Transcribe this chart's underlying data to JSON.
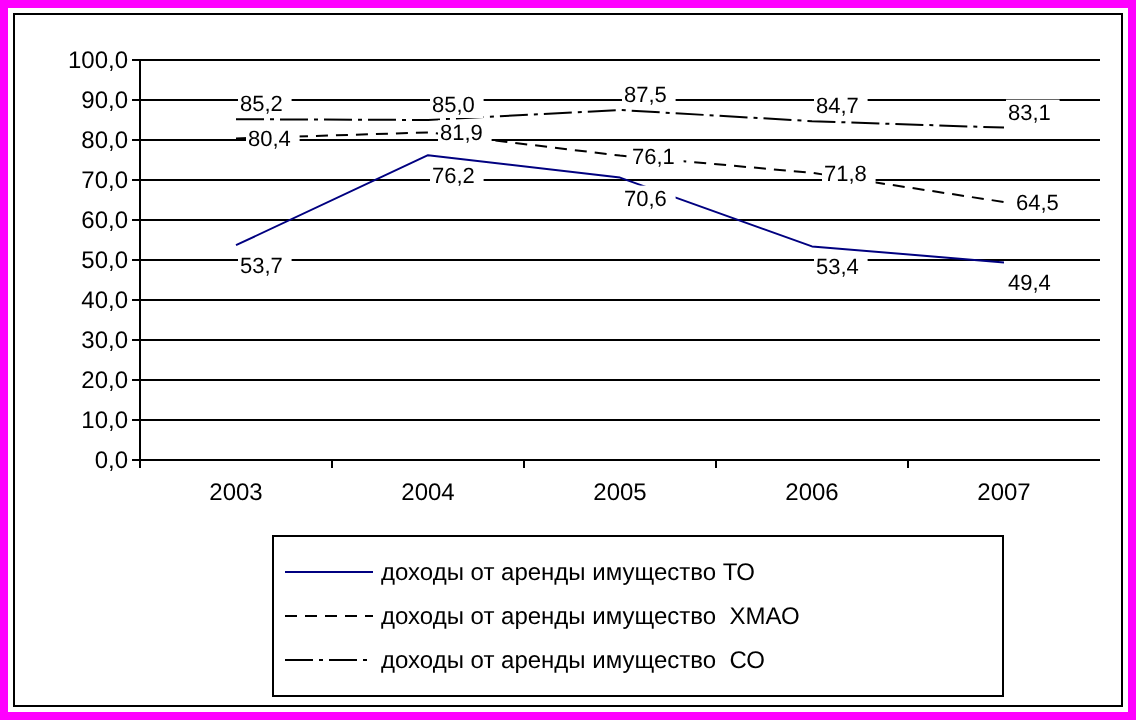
{
  "chart_data": {
    "type": "line",
    "categories": [
      "2003",
      "2004",
      "2005",
      "2006",
      "2007"
    ],
    "series": [
      {
        "name": "доходы от аренды имущество ТО",
        "color": "#000080",
        "line_style": "solid",
        "values": [
          53.7,
          76.2,
          70.6,
          53.4,
          49.4
        ],
        "value_labels": [
          "53,7",
          "76,2",
          "70,6",
          "53,4",
          "49,4"
        ]
      },
      {
        "name": "доходы от аренды имущество  ХМАО",
        "color": "#000000",
        "line_style": "dashed",
        "values": [
          80.4,
          81.9,
          76.1,
          71.8,
          64.5
        ],
        "value_labels": [
          "80,4",
          "81,9",
          "76,1",
          "71,8",
          "64,5"
        ]
      },
      {
        "name": "доходы от аренды имущество  СО",
        "color": "#000000",
        "line_style": "dashdot",
        "values": [
          85.2,
          85.0,
          87.5,
          84.7,
          83.1
        ],
        "value_labels": [
          "85,2",
          "85,0",
          "87,5",
          "84,7",
          "83,1"
        ]
      }
    ],
    "ylim": [
      0,
      100
    ],
    "yticks": [
      {
        "value": 0,
        "label": "0,0"
      },
      {
        "value": 10,
        "label": "10,0"
      },
      {
        "value": 20,
        "label": "20,0"
      },
      {
        "value": 30,
        "label": "30,0"
      },
      {
        "value": 40,
        "label": "40,0"
      },
      {
        "value": 50,
        "label": "50,0"
      },
      {
        "value": 60,
        "label": "60,0"
      },
      {
        "value": 70,
        "label": "70,0"
      },
      {
        "value": 80,
        "label": "80,0"
      },
      {
        "value": 90,
        "label": "90,0"
      },
      {
        "value": 100,
        "label": "100,0"
      }
    ],
    "grid": "y",
    "legend": "bottom",
    "marker": "none"
  }
}
